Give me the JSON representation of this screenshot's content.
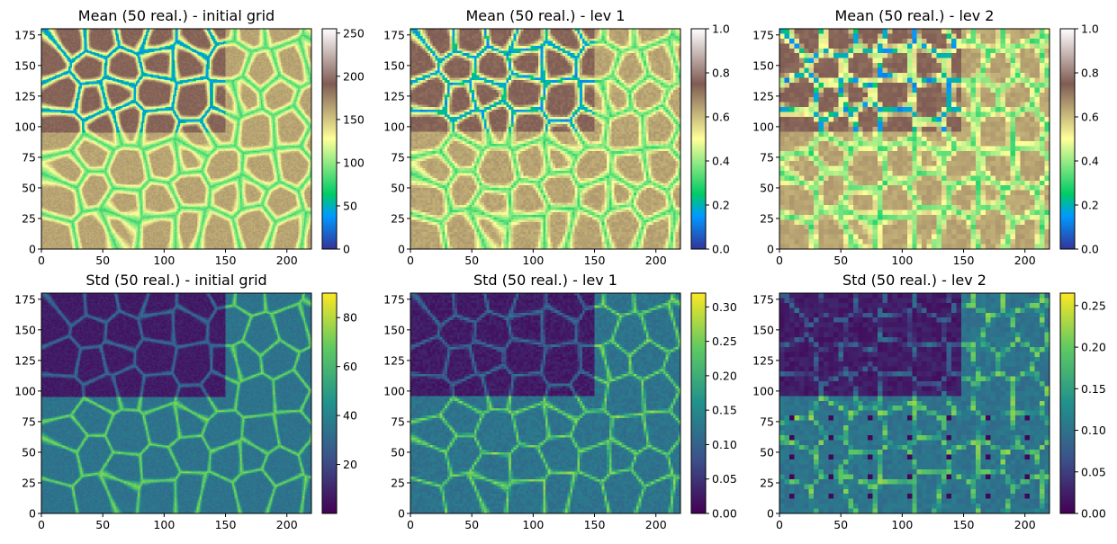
{
  "chart_data": [
    {
      "type": "heatmap",
      "title": "Mean (50 real.) - initial grid",
      "xlim": [
        0,
        220
      ],
      "ylim": [
        0,
        180
      ],
      "x_ticks": [
        0,
        50,
        100,
        150,
        200
      ],
      "y_ticks": [
        0,
        25,
        50,
        75,
        100,
        125,
        150,
        175
      ],
      "colormap": "terrain",
      "colorbar": {
        "min": 0,
        "max": 255,
        "ticks": [
          0,
          50,
          100,
          150,
          200,
          250
        ]
      },
      "grid_resolution": 1,
      "pattern": "cells"
    },
    {
      "type": "heatmap",
      "title": "Mean (50 real.) - lev 1",
      "xlim": [
        0,
        220
      ],
      "ylim": [
        0,
        180
      ],
      "x_ticks": [
        0,
        50,
        100,
        150,
        200
      ],
      "y_ticks": [
        0,
        25,
        50,
        75,
        100,
        125,
        150,
        175
      ],
      "colormap": "terrain",
      "colorbar": {
        "min": 0.0,
        "max": 1.0,
        "ticks": [
          0.0,
          0.2,
          0.4,
          0.6,
          0.8,
          1.0
        ]
      },
      "grid_resolution": 2,
      "pattern": "cells"
    },
    {
      "type": "heatmap",
      "title": "Mean (50 real.) - lev 2",
      "xlim": [
        0,
        220
      ],
      "ylim": [
        0,
        180
      ],
      "x_ticks": [
        0,
        50,
        100,
        150,
        200
      ],
      "y_ticks": [
        0,
        25,
        50,
        75,
        100,
        125,
        150,
        175
      ],
      "colormap": "terrain",
      "colorbar": {
        "min": 0.0,
        "max": 1.0,
        "ticks": [
          0.0,
          0.2,
          0.4,
          0.6,
          0.8,
          1.0
        ]
      },
      "grid_resolution": 4,
      "pattern": "cells"
    },
    {
      "type": "heatmap",
      "title": "Std (50 real.) - initial grid",
      "xlim": [
        0,
        220
      ],
      "ylim": [
        0,
        180
      ],
      "x_ticks": [
        0,
        50,
        100,
        150,
        200
      ],
      "y_ticks": [
        0,
        25,
        50,
        75,
        100,
        125,
        150,
        175
      ],
      "colormap": "viridis",
      "colorbar": {
        "min": 0,
        "max": 90,
        "ticks": [
          20,
          40,
          60,
          80
        ]
      },
      "grid_resolution": 1,
      "pattern": "edges"
    },
    {
      "type": "heatmap",
      "title": "Std (50 real.) - lev 1",
      "xlim": [
        0,
        220
      ],
      "ylim": [
        0,
        180
      ],
      "x_ticks": [
        0,
        50,
        100,
        150,
        200
      ],
      "y_ticks": [
        0,
        25,
        50,
        75,
        100,
        125,
        150,
        175
      ],
      "colormap": "viridis",
      "colorbar": {
        "min": 0.0,
        "max": 0.32,
        "ticks": [
          0.0,
          0.05,
          0.1,
          0.15,
          0.2,
          0.25,
          0.3
        ]
      },
      "grid_resolution": 2,
      "pattern": "edges"
    },
    {
      "type": "heatmap",
      "title": "Std (50 real.) - lev 2",
      "xlim": [
        0,
        220
      ],
      "ylim": [
        0,
        180
      ],
      "x_ticks": [
        0,
        50,
        100,
        150,
        200
      ],
      "y_ticks": [
        0,
        25,
        50,
        75,
        100,
        125,
        150,
        175
      ],
      "colormap": "viridis",
      "colorbar": {
        "min": 0.0,
        "max": 0.265,
        "ticks": [
          0.0,
          0.05,
          0.1,
          0.15,
          0.2,
          0.25
        ]
      },
      "grid_resolution": 4,
      "pattern": "edges"
    }
  ]
}
